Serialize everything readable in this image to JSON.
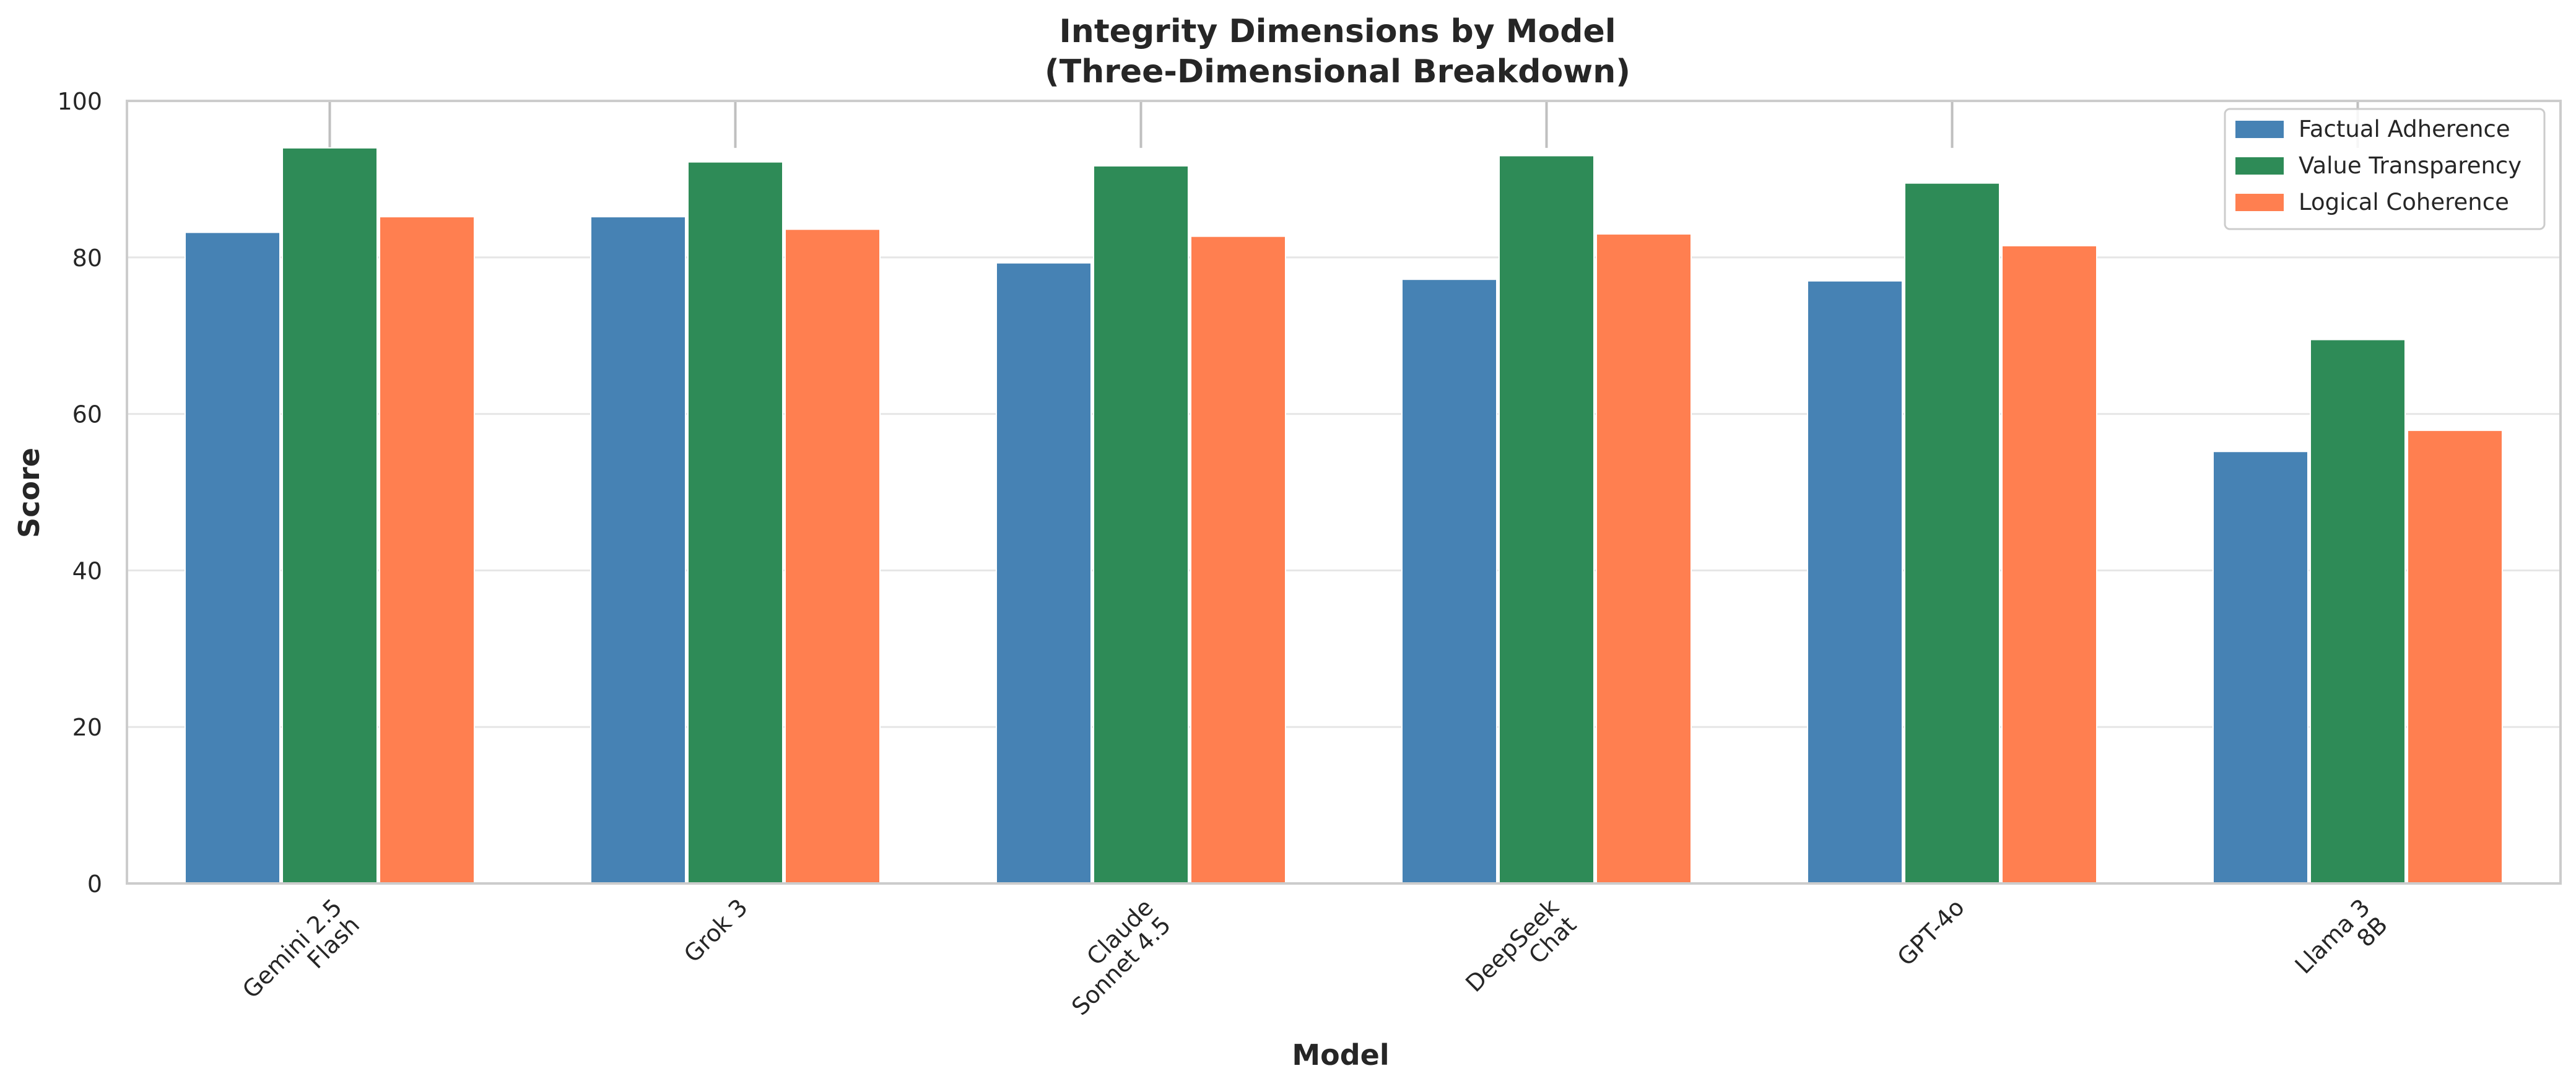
{
  "chart_data": {
    "type": "bar",
    "title": "Integrity Dimensions by Model",
    "subtitle": "(Three-Dimensional Breakdown)",
    "xlabel": "Model",
    "ylabel": "Score",
    "ylim": [
      0,
      100
    ],
    "yticks": [
      0,
      20,
      40,
      60,
      80,
      100
    ],
    "grid": true,
    "legend_position": "top-right",
    "categories": [
      [
        "Gemini 2.5",
        "Flash"
      ],
      [
        "Grok 3"
      ],
      [
        "Claude",
        "Sonnet 4.5"
      ],
      [
        "DeepSeek",
        "Chat"
      ],
      [
        "GPT-4o"
      ],
      [
        "Llama 3",
        "8B"
      ]
    ],
    "series": [
      {
        "name": "Factual Adherence",
        "color": "#4682B4",
        "values": [
          83.2,
          85.2,
          79.3,
          77.2,
          77.0,
          55.2
        ]
      },
      {
        "name": "Value Transparency",
        "color": "#2E8B57",
        "values": [
          94.0,
          92.2,
          91.7,
          93.0,
          89.5,
          69.5
        ]
      },
      {
        "name": "Logical Coherence",
        "color": "#FF7F50",
        "values": [
          85.2,
          83.6,
          82.7,
          83.0,
          81.5,
          57.9
        ]
      }
    ]
  }
}
